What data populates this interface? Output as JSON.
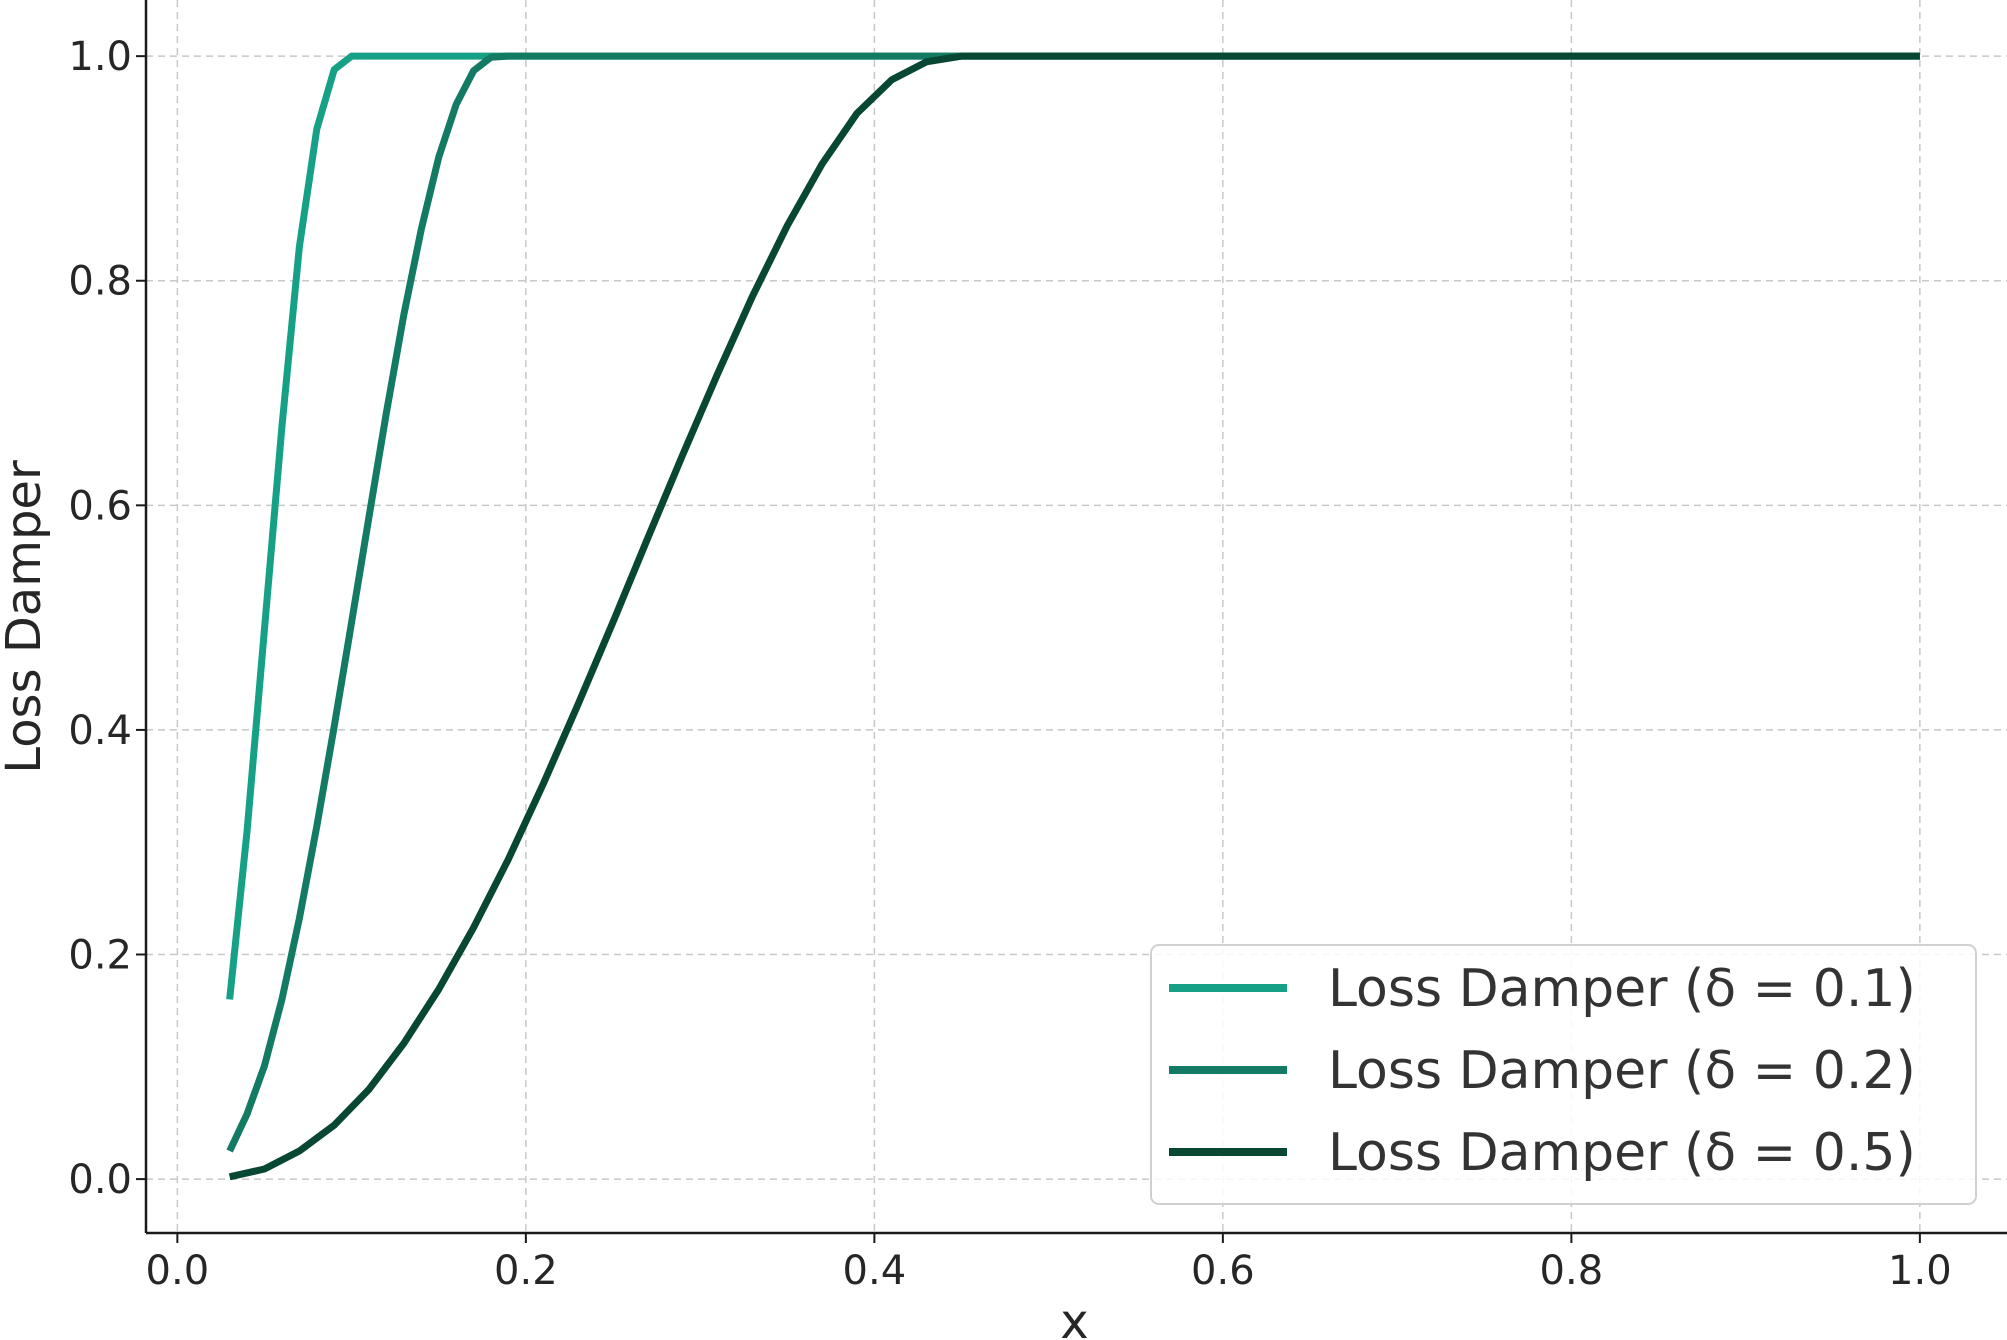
{
  "chart_data": {
    "type": "line",
    "title": "",
    "xlabel": "x",
    "ylabel": "Loss Damper",
    "xlim": [
      -0.018,
      1.05
    ],
    "ylim": [
      -0.048,
      1.05
    ],
    "xticks": [
      0.0,
      0.2,
      0.4,
      0.6,
      0.8,
      1.0
    ],
    "xtick_labels": [
      "0.0",
      "0.2",
      "0.4",
      "0.6",
      "0.8",
      "1.0"
    ],
    "yticks": [
      0.0,
      0.2,
      0.4,
      0.6,
      0.8,
      1.0
    ],
    "ytick_labels": [
      "0.0",
      "0.2",
      "0.4",
      "0.6",
      "0.8",
      "1.0"
    ],
    "grid": true,
    "legend_position": "lower-right",
    "x_range_shown": [
      0.03,
      1.0
    ],
    "series": [
      {
        "name": "Loss Damper (δ = 0.1)",
        "delta": 0.1,
        "color": "#16a085",
        "points": [
          [
            0.03,
            0.16
          ],
          [
            0.04,
            0.31
          ],
          [
            0.05,
            0.49
          ],
          [
            0.06,
            0.67
          ],
          [
            0.07,
            0.83
          ],
          [
            0.08,
            0.935
          ],
          [
            0.09,
            0.988
          ],
          [
            0.1,
            1.0
          ],
          [
            0.2,
            1.0
          ],
          [
            0.3,
            1.0
          ],
          [
            0.4,
            1.0
          ],
          [
            0.5,
            1.0
          ],
          [
            0.6,
            1.0
          ],
          [
            0.7,
            1.0
          ],
          [
            0.8,
            1.0
          ],
          [
            0.9,
            1.0
          ],
          [
            1.0,
            1.0
          ]
        ]
      },
      {
        "name": "Loss Damper (δ = 0.2)",
        "delta": 0.2,
        "color": "#137a63",
        "points": [
          [
            0.03,
            0.025
          ],
          [
            0.04,
            0.058
          ],
          [
            0.05,
            0.101
          ],
          [
            0.06,
            0.16
          ],
          [
            0.07,
            0.232
          ],
          [
            0.08,
            0.314
          ],
          [
            0.09,
            0.403
          ],
          [
            0.1,
            0.496
          ],
          [
            0.11,
            0.59
          ],
          [
            0.12,
            0.683
          ],
          [
            0.13,
            0.77
          ],
          [
            0.14,
            0.846
          ],
          [
            0.15,
            0.91
          ],
          [
            0.16,
            0.957
          ],
          [
            0.17,
            0.987
          ],
          [
            0.18,
            0.999
          ],
          [
            0.19,
            1.0
          ],
          [
            0.2,
            1.0
          ],
          [
            0.3,
            1.0
          ],
          [
            0.4,
            1.0
          ],
          [
            0.5,
            1.0
          ],
          [
            0.6,
            1.0
          ],
          [
            0.7,
            1.0
          ],
          [
            0.8,
            1.0
          ],
          [
            0.9,
            1.0
          ],
          [
            1.0,
            1.0
          ]
        ]
      },
      {
        "name": "Loss Damper (δ = 0.5)",
        "delta": 0.5,
        "color": "#074733",
        "points": [
          [
            0.03,
            0.002
          ],
          [
            0.05,
            0.009
          ],
          [
            0.07,
            0.025
          ],
          [
            0.09,
            0.048
          ],
          [
            0.11,
            0.08
          ],
          [
            0.13,
            0.121
          ],
          [
            0.15,
            0.169
          ],
          [
            0.17,
            0.224
          ],
          [
            0.19,
            0.285
          ],
          [
            0.21,
            0.352
          ],
          [
            0.23,
            0.423
          ],
          [
            0.25,
            0.496
          ],
          [
            0.27,
            0.571
          ],
          [
            0.29,
            0.645
          ],
          [
            0.31,
            0.717
          ],
          [
            0.33,
            0.786
          ],
          [
            0.35,
            0.849
          ],
          [
            0.37,
            0.904
          ],
          [
            0.39,
            0.949
          ],
          [
            0.41,
            0.979
          ],
          [
            0.43,
            0.995
          ],
          [
            0.45,
            1.0
          ],
          [
            0.47,
            1.0
          ],
          [
            0.5,
            1.0
          ],
          [
            0.6,
            1.0
          ],
          [
            0.7,
            1.0
          ],
          [
            0.8,
            1.0
          ],
          [
            0.9,
            1.0
          ],
          [
            1.0,
            1.0
          ]
        ]
      }
    ]
  }
}
